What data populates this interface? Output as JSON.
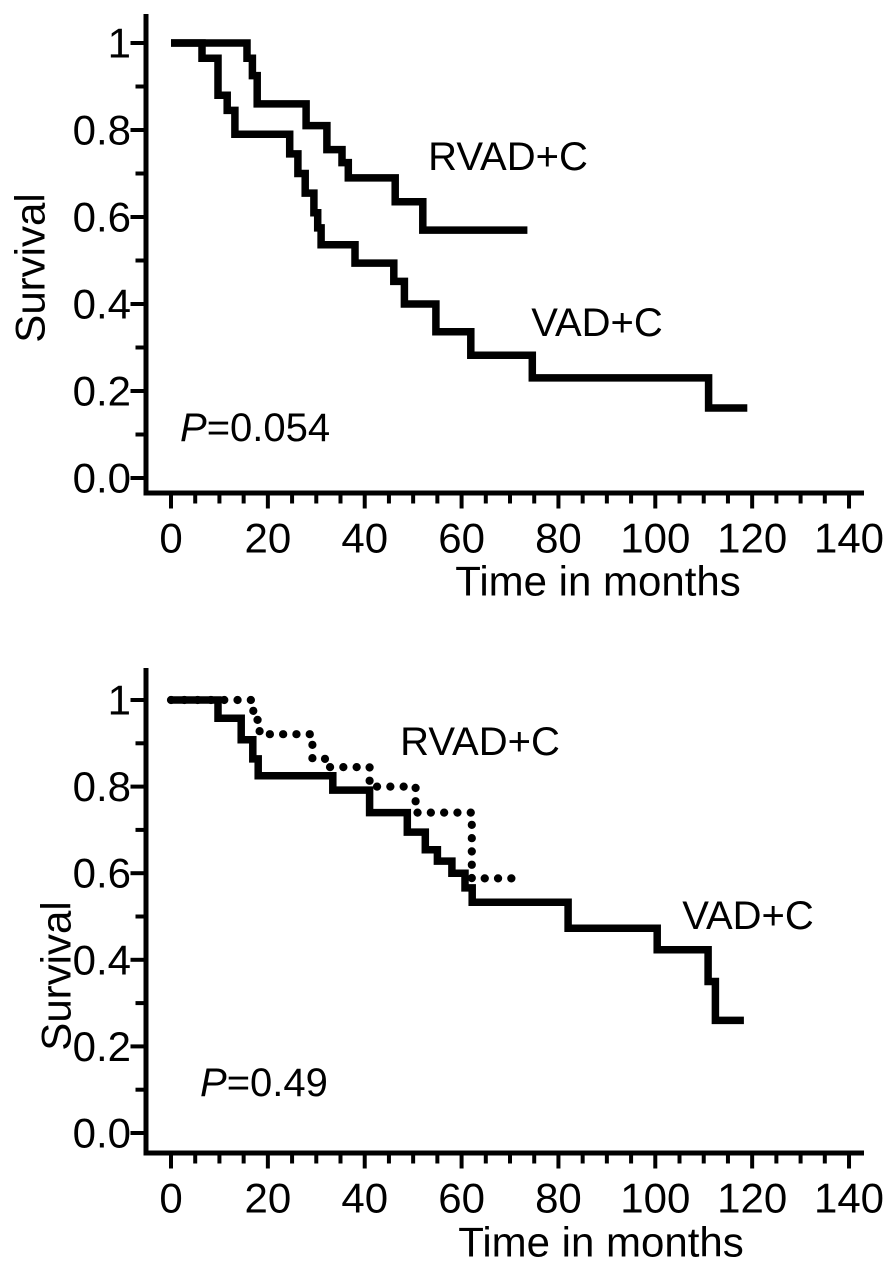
{
  "figure": {
    "background": "#ffffff",
    "ink_color": "#000000",
    "description": "Two stacked Kaplan-Meier survival plots comparing RVAD+C and VAD+C"
  },
  "chart_data": [
    {
      "type": "line",
      "subtype": "kaplan-meier-step",
      "xlabel": "Time in months",
      "ylabel": "Survival",
      "annotation": {
        "prefix": "P",
        "rest": "=0.054"
      },
      "xlim": [
        0,
        143
      ],
      "ylim": [
        0,
        1.0
      ],
      "xticks": [
        0,
        20,
        40,
        60,
        80,
        100,
        120,
        140
      ],
      "x_minor_step": 5,
      "ytick_labels": [
        "1",
        "0.8",
        "0.6",
        "0.4",
        "0.2",
        "0.0"
      ],
      "ytick_values": [
        1,
        0.8,
        0.6,
        0.4,
        0.2,
        0
      ],
      "y_minor_step": 0.1,
      "grid": false,
      "series": [
        {
          "name": "RVAD+C",
          "style": "solid",
          "points": [
            [
              0,
              1
            ],
            [
              15.7,
              1
            ],
            [
              15.7,
              0.965
            ],
            [
              16.8,
              0.965
            ],
            [
              16.8,
              0.925
            ],
            [
              17.8,
              0.925
            ],
            [
              17.8,
              0.86
            ],
            [
              27.9,
              0.86
            ],
            [
              27.9,
              0.81
            ],
            [
              32.2,
              0.81
            ],
            [
              32.2,
              0.755
            ],
            [
              35.3,
              0.755
            ],
            [
              35.3,
              0.725
            ],
            [
              36.6,
              0.725
            ],
            [
              36.6,
              0.69
            ],
            [
              46.3,
              0.69
            ],
            [
              46.3,
              0.635
            ],
            [
              52,
              0.635
            ],
            [
              52,
              0.57
            ],
            [
              73.6,
              0.57
            ]
          ]
        },
        {
          "name": "VAD+C",
          "style": "solid",
          "points": [
            [
              0,
              1
            ],
            [
              6.4,
              1
            ],
            [
              6.4,
              0.965
            ],
            [
              9.7,
              0.965
            ],
            [
              9.7,
              0.88
            ],
            [
              11.6,
              0.88
            ],
            [
              11.6,
              0.845
            ],
            [
              13.2,
              0.845
            ],
            [
              13.2,
              0.79
            ],
            [
              24.5,
              0.79
            ],
            [
              24.5,
              0.745
            ],
            [
              26.2,
              0.745
            ],
            [
              26.2,
              0.7
            ],
            [
              27.7,
              0.7
            ],
            [
              27.7,
              0.655
            ],
            [
              29.5,
              0.655
            ],
            [
              29.5,
              0.61
            ],
            [
              30.3,
              0.61
            ],
            [
              30.3,
              0.575
            ],
            [
              31,
              0.575
            ],
            [
              31,
              0.536
            ],
            [
              38,
              0.536
            ],
            [
              38,
              0.494
            ],
            [
              46,
              0.494
            ],
            [
              46,
              0.452
            ],
            [
              48.2,
              0.452
            ],
            [
              48.2,
              0.4
            ],
            [
              54.7,
              0.4
            ],
            [
              54.7,
              0.336
            ],
            [
              61.9,
              0.336
            ],
            [
              61.9,
              0.282
            ],
            [
              74.6,
              0.282
            ],
            [
              74.6,
              0.23
            ],
            [
              111,
              0.23
            ],
            [
              111,
              0.161
            ],
            [
              119,
              0.161
            ]
          ]
        }
      ]
    },
    {
      "type": "line",
      "subtype": "kaplan-meier-step",
      "xlabel": "Time in months",
      "ylabel": "Survival",
      "annotation": {
        "prefix": "P",
        "rest": "=0.49"
      },
      "xlim": [
        0,
        143
      ],
      "ylim": [
        0,
        1.0
      ],
      "xticks": [
        0,
        20,
        40,
        60,
        80,
        100,
        120,
        140
      ],
      "x_minor_step": 5,
      "ytick_labels": [
        "1",
        "0.8",
        "0.6",
        "0.4",
        "0.2",
        "0.0"
      ],
      "ytick_values": [
        1,
        0.8,
        0.6,
        0.4,
        0.2,
        0
      ],
      "y_minor_step": 0.1,
      "grid": false,
      "series": [
        {
          "name": "RVAD+C",
          "style": "dotted",
          "points": [
            [
              0,
              1
            ],
            [
              17,
              1
            ],
            [
              17,
              0.954
            ],
            [
              18.3,
              0.954
            ],
            [
              18.3,
              0.921
            ],
            [
              29.2,
              0.921
            ],
            [
              29.2,
              0.865
            ],
            [
              31.8,
              0.865
            ],
            [
              31.8,
              0.845
            ],
            [
              41,
              0.845
            ],
            [
              41,
              0.8
            ],
            [
              50.5,
              0.8
            ],
            [
              50.5,
              0.74
            ],
            [
              62.1,
              0.74
            ],
            [
              62.1,
              0.588
            ],
            [
              71.5,
              0.588
            ]
          ]
        },
        {
          "name": "VAD+C",
          "style": "solid",
          "points": [
            [
              0,
              1
            ],
            [
              9.7,
              1
            ],
            [
              9.7,
              0.958
            ],
            [
              14.5,
              0.958
            ],
            [
              14.5,
              0.908
            ],
            [
              16.9,
              0.908
            ],
            [
              16.9,
              0.864
            ],
            [
              18,
              0.864
            ],
            [
              18,
              0.825
            ],
            [
              33.4,
              0.825
            ],
            [
              33.4,
              0.792
            ],
            [
              41,
              0.792
            ],
            [
              41,
              0.74
            ],
            [
              48.8,
              0.74
            ],
            [
              48.8,
              0.695
            ],
            [
              52.5,
              0.695
            ],
            [
              52.5,
              0.654
            ],
            [
              55,
              0.654
            ],
            [
              55,
              0.628
            ],
            [
              58,
              0.628
            ],
            [
              58,
              0.6
            ],
            [
              60.7,
              0.6
            ],
            [
              60.7,
              0.566
            ],
            [
              62.2,
              0.566
            ],
            [
              62.2,
              0.533
            ],
            [
              82,
              0.533
            ],
            [
              82,
              0.473
            ],
            [
              100.4,
              0.473
            ],
            [
              100.4,
              0.423
            ],
            [
              110.9,
              0.423
            ],
            [
              110.9,
              0.35
            ],
            [
              112.4,
              0.35
            ],
            [
              112.4,
              0.26
            ],
            [
              118.3,
              0.26
            ]
          ]
        }
      ]
    }
  ]
}
